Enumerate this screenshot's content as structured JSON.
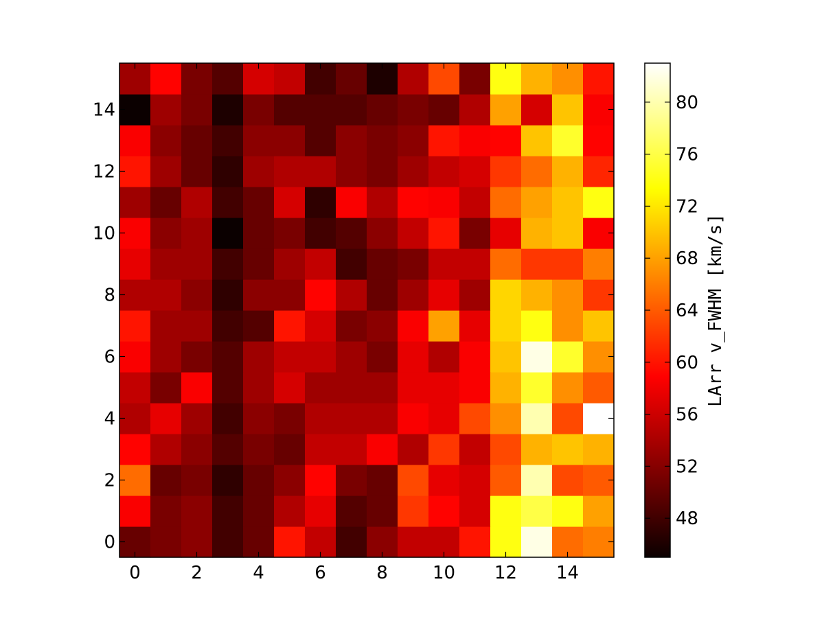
{
  "chart_data": {
    "type": "heatmap",
    "title": "",
    "xlabel": "",
    "ylabel": "",
    "x": [
      0,
      1,
      2,
      3,
      4,
      5,
      6,
      7,
      8,
      9,
      10,
      11,
      12,
      13,
      14,
      15
    ],
    "y": [
      0,
      1,
      2,
      3,
      4,
      5,
      6,
      7,
      8,
      9,
      10,
      11,
      12,
      13,
      14,
      15
    ],
    "xlim": [
      -0.5,
      15.5
    ],
    "ylim": [
      -0.5,
      15.5
    ],
    "xticks": [
      "0",
      "2",
      "4",
      "6",
      "8",
      "10",
      "12",
      "14"
    ],
    "yticks": [
      "0",
      "2",
      "4",
      "6",
      "8",
      "10",
      "12",
      "14"
    ],
    "colormap": "hot",
    "colorbar": {
      "label": "LArr v_FWHM [km/s]",
      "range": [
        45,
        83
      ],
      "ticks": [
        "48",
        "52",
        "56",
        "60",
        "64",
        "68",
        "72",
        "76",
        "80"
      ]
    },
    "rows_bottom_to_top": [
      [
        50,
        51,
        52,
        48,
        50,
        60,
        55,
        48,
        52,
        55,
        55,
        60,
        74,
        82,
        65,
        66
      ],
      [
        58,
        51,
        52,
        48,
        50,
        54,
        57,
        49,
        50,
        62,
        59,
        56,
        74,
        76,
        74,
        68
      ],
      [
        65,
        50,
        51,
        47,
        50,
        52,
        59,
        51,
        50,
        63,
        57,
        56,
        64,
        80,
        63,
        64
      ],
      [
        59,
        54,
        52,
        49,
        51,
        50,
        55,
        55,
        58,
        54,
        62,
        55,
        63,
        69,
        70,
        69
      ],
      [
        54,
        57,
        53,
        48,
        52,
        51,
        54,
        54,
        54,
        58,
        57,
        63,
        67,
        80,
        63,
        83
      ],
      [
        55,
        51,
        58,
        49,
        53,
        56,
        53,
        53,
        53,
        57,
        57,
        58,
        69,
        75,
        67,
        64
      ],
      [
        58,
        53,
        51,
        49,
        53,
        55,
        55,
        53,
        51,
        57,
        54,
        58,
        70,
        82,
        75,
        67
      ],
      [
        60,
        53,
        53,
        48,
        49,
        60,
        56,
        51,
        52,
        58,
        68,
        57,
        71,
        74,
        67,
        70
      ],
      [
        54,
        54,
        52,
        47,
        52,
        52,
        59,
        54,
        50,
        53,
        57,
        53,
        71,
        69,
        67,
        62
      ],
      [
        57,
        53,
        53,
        48,
        50,
        53,
        55,
        48,
        50,
        51,
        55,
        55,
        65,
        62,
        62,
        66
      ],
      [
        58,
        52,
        53,
        45,
        50,
        51,
        48,
        49,
        52,
        55,
        60,
        51,
        57,
        69,
        70,
        58
      ],
      [
        53,
        50,
        54,
        48,
        50,
        56,
        47,
        58,
        54,
        59,
        58,
        55,
        65,
        68,
        70,
        74
      ],
      [
        60,
        53,
        50,
        47,
        53,
        54,
        54,
        52,
        51,
        53,
        55,
        56,
        62,
        65,
        69,
        61
      ],
      [
        58,
        52,
        50,
        48,
        52,
        52,
        49,
        52,
        51,
        52,
        60,
        58,
        59,
        70,
        75,
        59
      ],
      [
        45,
        53,
        51,
        46,
        51,
        49,
        49,
        49,
        50,
        51,
        50,
        54,
        68,
        56,
        70,
        58
      ],
      [
        53,
        59,
        51,
        49,
        56,
        55,
        48,
        50,
        46,
        54,
        63,
        51,
        74,
        69,
        67,
        60
      ]
    ]
  }
}
